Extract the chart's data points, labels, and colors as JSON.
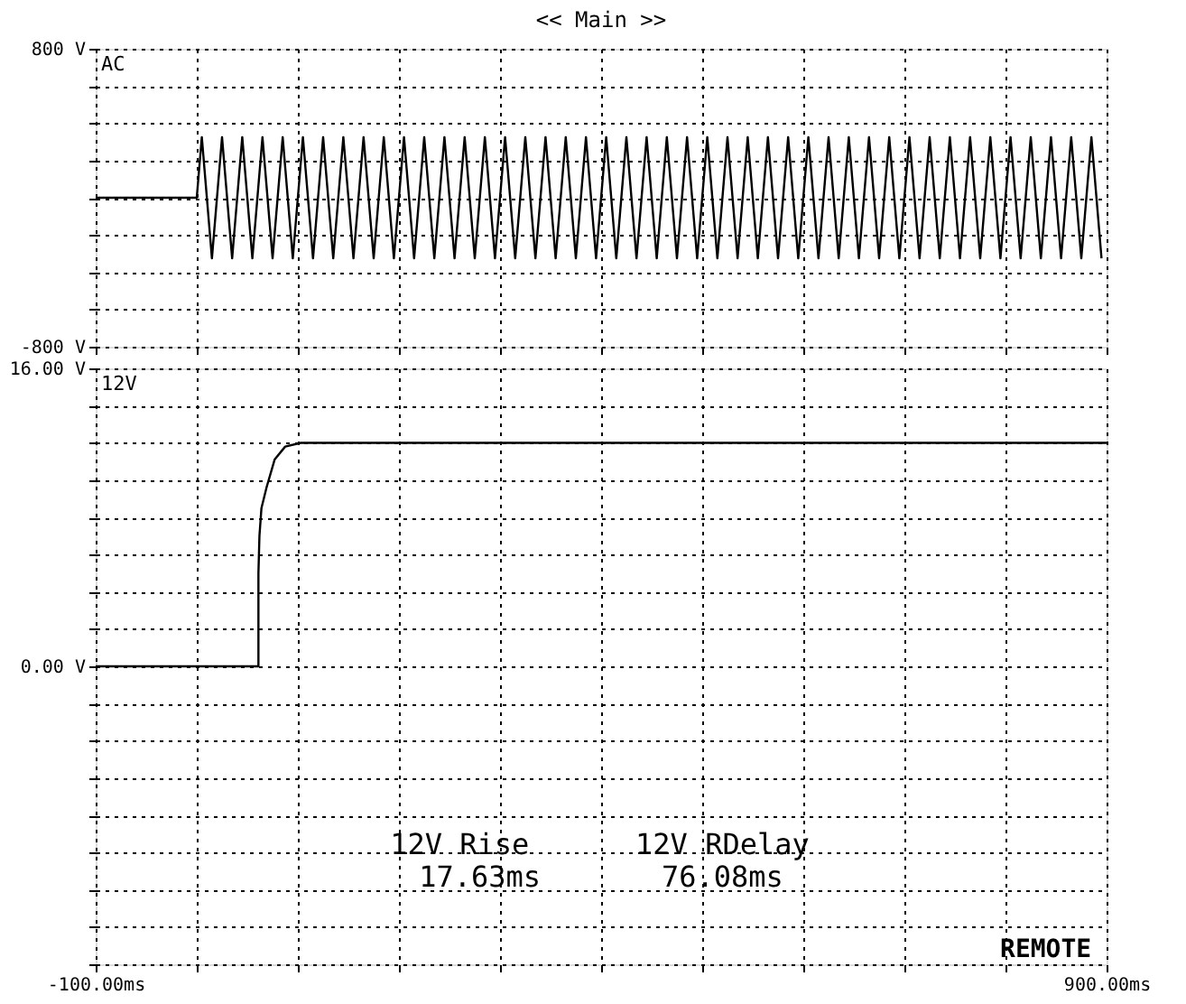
{
  "chart_data": [
    {
      "type": "line",
      "title": "<< Main >>",
      "xlim": [
        -100,
        900
      ],
      "xticks": [
        {
          "value": -100,
          "label": null
        },
        {
          "value": 0,
          "label": null
        },
        {
          "value": 100,
          "label": null
        },
        {
          "value": 200,
          "label": null
        },
        {
          "value": 300,
          "label": null
        },
        {
          "value": 400,
          "label": null
        },
        {
          "value": 500,
          "label": null
        },
        {
          "value": 600,
          "label": null
        },
        {
          "value": 700,
          "label": null
        },
        {
          "value": 800,
          "label": null
        },
        {
          "value": 900,
          "label": null
        }
      ],
      "ylim": [
        -800,
        800
      ],
      "yticks": [
        {
          "value": -800,
          "label": "-800 V"
        },
        {
          "value": -600,
          "label": null
        },
        {
          "value": -400,
          "label": null
        },
        {
          "value": -200,
          "label": null
        },
        {
          "value": 0,
          "label": null
        },
        {
          "value": 200,
          "label": null
        },
        {
          "value": 400,
          "label": null
        },
        {
          "value": 600,
          "label": null
        },
        {
          "value": 800,
          "label": "800 V"
        }
      ],
      "grid": true,
      "tick_labels": "y",
      "series": [
        {
          "name": "AC",
          "color": "#000000",
          "x": [
            -100,
            0,
            5,
            15,
            25,
            35,
            45,
            55,
            65,
            75,
            85,
            95,
            105,
            115,
            125,
            135,
            145,
            155,
            165,
            175,
            185,
            195,
            205,
            215,
            225,
            235,
            245,
            255,
            265,
            275,
            285,
            295,
            305,
            315,
            325,
            335,
            345,
            355,
            365,
            375,
            385,
            395,
            405,
            415,
            425,
            435,
            445,
            455,
            465,
            475,
            485,
            495,
            505,
            515,
            525,
            535,
            545,
            555,
            565,
            575,
            585,
            595,
            605,
            615,
            625,
            635,
            645,
            655,
            665,
            675,
            685,
            695,
            705,
            715,
            725,
            735,
            745,
            755,
            765,
            775,
            785,
            795,
            805,
            815,
            825,
            835,
            845,
            855,
            865,
            875,
            885,
            895
          ],
          "values": [
            0,
            0,
            325,
            -325,
            325,
            -325,
            325,
            -325,
            325,
            -325,
            325,
            -325,
            325,
            -325,
            325,
            -325,
            325,
            -325,
            325,
            -325,
            325,
            -325,
            325,
            -325,
            325,
            -325,
            325,
            -325,
            325,
            -325,
            325,
            -325,
            325,
            -325,
            325,
            -325,
            325,
            -325,
            325,
            -325,
            325,
            -325,
            325,
            -325,
            325,
            -325,
            325,
            -325,
            325,
            -325,
            325,
            -325,
            325,
            -325,
            325,
            -325,
            325,
            -325,
            325,
            -325,
            325,
            -325,
            325,
            -325,
            325,
            -325,
            325,
            -325,
            325,
            -325,
            325,
            -325,
            325,
            -325,
            325,
            -325,
            325,
            -325,
            325,
            -325,
            325,
            -325,
            325,
            -325,
            325,
            -325,
            325,
            -325,
            325,
            -325,
            325,
            -325
          ]
        }
      ]
    },
    {
      "type": "line",
      "xlim": [
        -100,
        900
      ],
      "xticks": [
        {
          "value": -100,
          "label": "-100.00ms"
        },
        {
          "value": 0,
          "label": null
        },
        {
          "value": 100,
          "label": null
        },
        {
          "value": 200,
          "label": null
        },
        {
          "value": 300,
          "label": null
        },
        {
          "value": 400,
          "label": null
        },
        {
          "value": 500,
          "label": null
        },
        {
          "value": 600,
          "label": null
        },
        {
          "value": 700,
          "label": null
        },
        {
          "value": 800,
          "label": null
        },
        {
          "value": 900,
          "label": "900.00ms"
        }
      ],
      "ylim": [
        -16,
        16
      ],
      "yticks": [
        {
          "value": -16,
          "label": null
        },
        {
          "value": -14,
          "label": null
        },
        {
          "value": -12,
          "label": null
        },
        {
          "value": -10,
          "label": null
        },
        {
          "value": -8,
          "label": null
        },
        {
          "value": -6,
          "label": null
        },
        {
          "value": -4,
          "label": null
        },
        {
          "value": -2,
          "label": null
        },
        {
          "value": 0,
          "label": "0.00 V"
        },
        {
          "value": 2,
          "label": null
        },
        {
          "value": 4,
          "label": null
        },
        {
          "value": 6,
          "label": null
        },
        {
          "value": 8,
          "label": null
        },
        {
          "value": 10,
          "label": null
        },
        {
          "value": 12,
          "label": null
        },
        {
          "value": 14,
          "label": null
        },
        {
          "value": 16,
          "label": "16.00 V"
        }
      ],
      "grid": true,
      "series": [
        {
          "name": "12V",
          "color": "#000000",
          "x": [
            -100,
            61,
            61,
            62,
            64,
            69,
            77,
            87.5,
            103,
            900
          ],
          "values": [
            0,
            0,
            5,
            7,
            8.5,
            9.6,
            11.1,
            11.8,
            12,
            12
          ]
        }
      ],
      "annotations": [
        "12V  Rise",
        "17.63ms",
        "12V  RDelay",
        "76.08ms",
        "REMOTE"
      ]
    }
  ]
}
